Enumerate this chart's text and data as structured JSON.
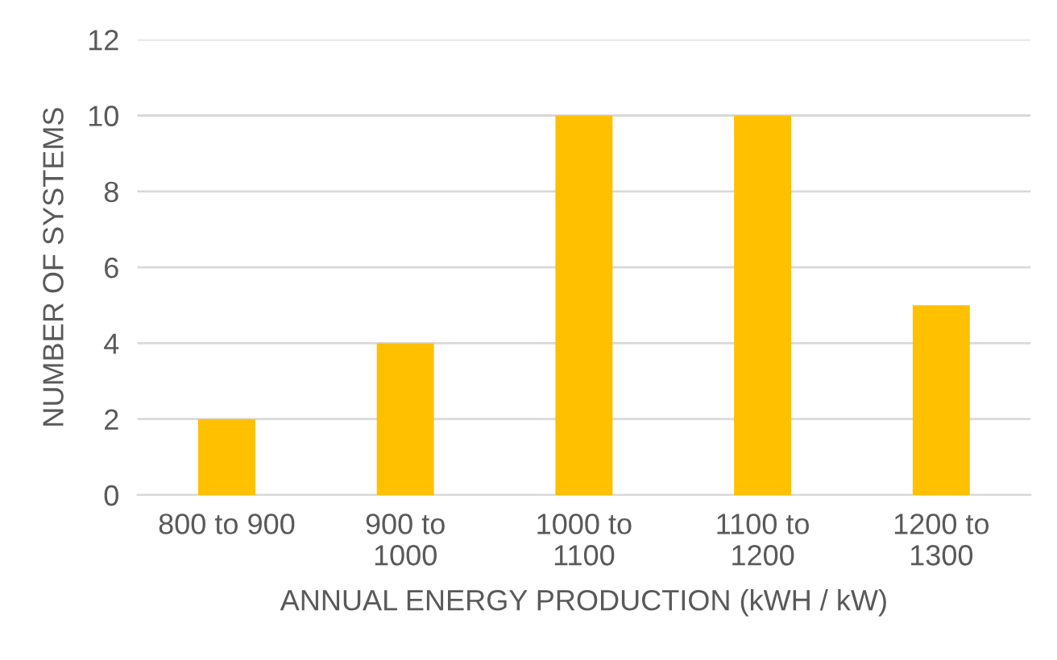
{
  "chart_data": {
    "type": "bar",
    "xlabel": "ANNUAL ENERGY PRODUCTION (kWH / kW)",
    "ylabel": "NUMBER OF SYSTEMS",
    "categories": [
      "800 to 900",
      "900 to\n1000",
      "1000 to\n1100",
      "1100 to\n1200",
      "1200 to\n1300"
    ],
    "values": [
      2,
      4,
      10,
      10,
      5
    ],
    "color": "#ffc000",
    "ylim": [
      0,
      12
    ],
    "yticks": [
      0,
      2,
      4,
      6,
      8,
      10,
      12
    ],
    "grid": "y",
    "legend": false
  }
}
